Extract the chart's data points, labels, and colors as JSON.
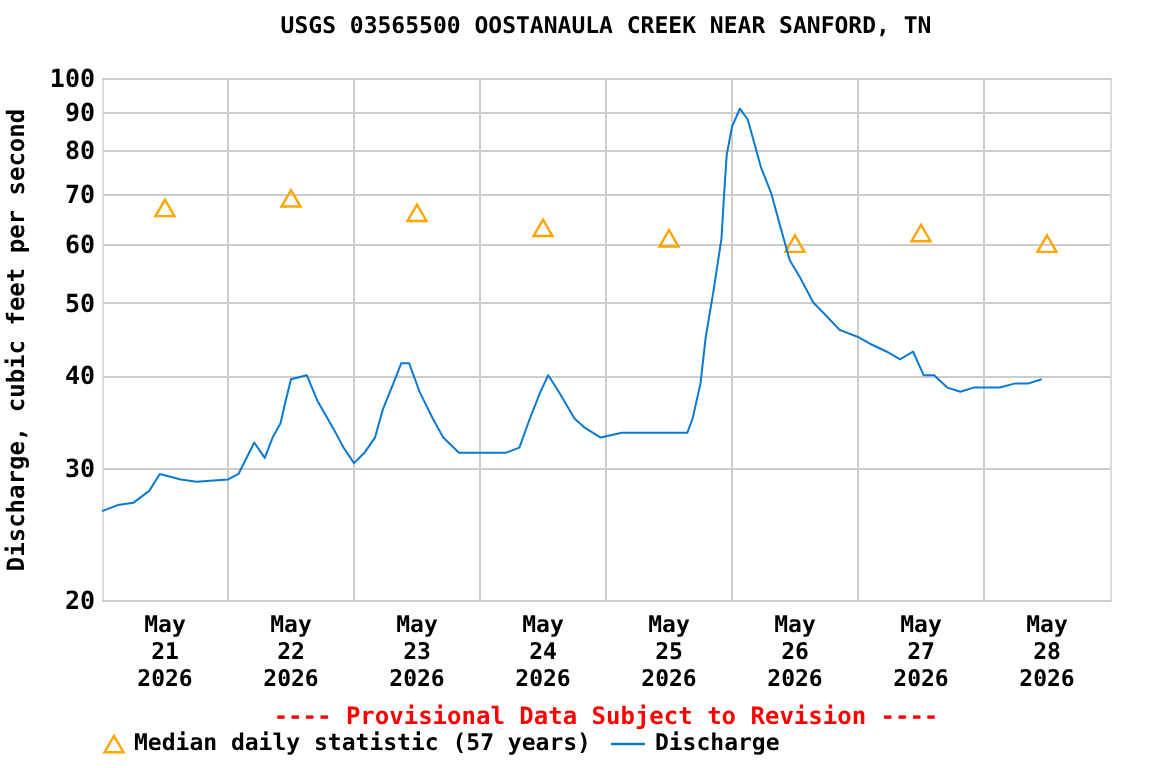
{
  "chart_data": {
    "type": "line",
    "title": "USGS 03565500 OOSTANAULA CREEK NEAR SANFORD, TN",
    "ylabel": "Discharge, cubic feet per second",
    "annotations": [
      "---- Provisional Data Subject to Revision ----"
    ],
    "log": "y",
    "grid": true,
    "legend": "bottom",
    "xlim": [
      "2026-05-21T00:00",
      "2026-05-29T00:00"
    ],
    "xticks": [
      {
        "value": "2026-05-21T12:00",
        "label": "May 21 2026"
      },
      {
        "value": "2026-05-22T12:00",
        "label": "May 22 2026"
      },
      {
        "value": "2026-05-23T12:00",
        "label": "May 23 2026"
      },
      {
        "value": "2026-05-24T12:00",
        "label": "May 24 2026"
      },
      {
        "value": "2026-05-25T12:00",
        "label": "May 25 2026"
      },
      {
        "value": "2026-05-26T12:00",
        "label": "May 26 2026"
      },
      {
        "value": "2026-05-27T12:00",
        "label": "May 27 2026"
      },
      {
        "value": "2026-05-28T12:00",
        "label": "May 28 2026"
      },
      {
        "value": "2026-05-22T00:00",
        "label": null
      },
      {
        "value": "2026-05-23T00:00",
        "label": null
      },
      {
        "value": "2026-05-24T00:00",
        "label": null
      },
      {
        "value": "2026-05-25T00:00",
        "label": null
      },
      {
        "value": "2026-05-26T00:00",
        "label": null
      },
      {
        "value": "2026-05-27T00:00",
        "label": null
      },
      {
        "value": "2026-05-28T00:00",
        "label": null
      }
    ],
    "ylim": [
      20,
      100
    ],
    "yticks": [
      20,
      30,
      40,
      50,
      60,
      70,
      80,
      90,
      100
    ],
    "series": [
      {
        "name": "Median daily statistic (57 years)",
        "type": "scatter",
        "marker": "triangle",
        "color": "#ffa500",
        "x": [
          "2026-05-21T12:00",
          "2026-05-22T12:00",
          "2026-05-23T12:00",
          "2026-05-24T12:00",
          "2026-05-25T12:00",
          "2026-05-26T12:00",
          "2026-05-27T12:00",
          "2026-05-28T12:00"
        ],
        "values": [
          67,
          69,
          66,
          63,
          61,
          60,
          62,
          60
        ]
      },
      {
        "name": "Discharge",
        "color": "#0a7ad1",
        "x": [
          "2026-05-21T00:00",
          "2026-05-21T03:00",
          "2026-05-21T06:00",
          "2026-05-21T09:00",
          "2026-05-21T11:00",
          "2026-05-21T15:00",
          "2026-05-21T18:00",
          "2026-05-22T00:00",
          "2026-05-22T02:00",
          "2026-05-22T05:00",
          "2026-05-22T07:00",
          "2026-05-22T08:30",
          "2026-05-22T10:00",
          "2026-05-22T11:00",
          "2026-05-22T12:00",
          "2026-05-22T15:00",
          "2026-05-22T17:00",
          "2026-05-22T20:00",
          "2026-05-22T22:00",
          "2026-05-23T00:00",
          "2026-05-23T02:00",
          "2026-05-23T04:00",
          "2026-05-23T05:30",
          "2026-05-23T07:30",
          "2026-05-23T09:00",
          "2026-05-23T10:30",
          "2026-05-23T12:30",
          "2026-05-23T15:00",
          "2026-05-23T17:00",
          "2026-05-23T20:00",
          "2026-05-24T00:00",
          "2026-05-24T05:00",
          "2026-05-24T07:30",
          "2026-05-24T09:30",
          "2026-05-24T11:30",
          "2026-05-24T13:00",
          "2026-05-24T15:00",
          "2026-05-24T18:00",
          "2026-05-24T20:00",
          "2026-05-24T23:00",
          "2026-05-25T03:00",
          "2026-05-25T08:00",
          "2026-05-25T13:00",
          "2026-05-25T15:30",
          "2026-05-25T16:30",
          "2026-05-25T18:00",
          "2026-05-25T19:00",
          "2026-05-25T20:30",
          "2026-05-25T22:00",
          "2026-05-25T22:30",
          "2026-05-25T23:00",
          "2026-05-26T00:00",
          "2026-05-26T01:30",
          "2026-05-26T03:00",
          "2026-05-26T04:00",
          "2026-05-26T05:30",
          "2026-05-26T07:30",
          "2026-05-26T09:00",
          "2026-05-26T11:00",
          "2026-05-26T13:00",
          "2026-05-26T15:30",
          "2026-05-26T18:00",
          "2026-05-26T20:30",
          "2026-05-27T00:00",
          "2026-05-27T02:30",
          "2026-05-27T05:30",
          "2026-05-27T08:00",
          "2026-05-27T10:30",
          "2026-05-27T12:30",
          "2026-05-27T14:30",
          "2026-05-27T17:00",
          "2026-05-27T19:30",
          "2026-05-27T22:00",
          "2026-05-28T00:30",
          "2026-05-28T03:00",
          "2026-05-28T06:00",
          "2026-05-28T08:30",
          "2026-05-28T11:00"
        ],
        "values": [
          26.3,
          26.8,
          27,
          28,
          29.5,
          29,
          28.8,
          29,
          29.5,
          32.5,
          31,
          33,
          34.5,
          37,
          39.5,
          40,
          37,
          34,
          32,
          30.5,
          31.5,
          33,
          36,
          39,
          41.5,
          41.5,
          38,
          35,
          33,
          31.5,
          31.5,
          31.5,
          32,
          35,
          38,
          40,
          38,
          35,
          34,
          33,
          33.5,
          33.5,
          33.5,
          33.5,
          35,
          39,
          45,
          52,
          61,
          70,
          79,
          86,
          91,
          88,
          83,
          76,
          70,
          64,
          57,
          54,
          50,
          48,
          46,
          45,
          44,
          43,
          42,
          43,
          40,
          40,
          38.5,
          38,
          38.5,
          38.5,
          38.5,
          39,
          39,
          39.5
        ]
      }
    ]
  }
}
